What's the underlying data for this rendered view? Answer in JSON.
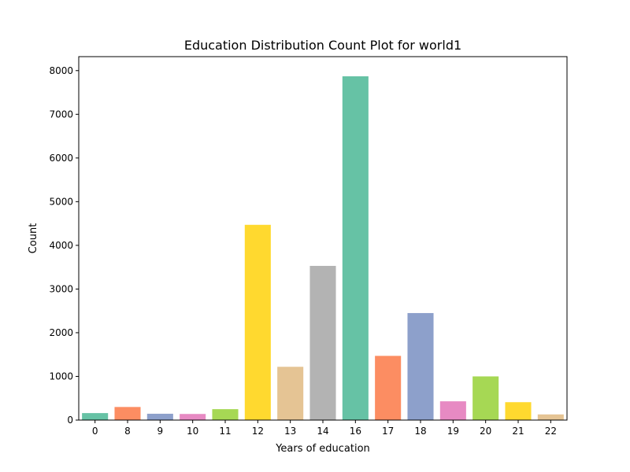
{
  "chart_data": {
    "type": "bar",
    "title": "Education Distribution Count Plot for world1",
    "xlabel": "Years of education",
    "ylabel": "Count",
    "categories": [
      "0",
      "8",
      "9",
      "10",
      "11",
      "12",
      "13",
      "14",
      "16",
      "17",
      "18",
      "19",
      "20",
      "21",
      "22"
    ],
    "values": [
      160,
      300,
      145,
      140,
      250,
      4470,
      1220,
      3530,
      7870,
      1470,
      2450,
      430,
      1000,
      410,
      130
    ],
    "ylim": [
      0,
      8320
    ],
    "yticks": [
      0,
      1000,
      2000,
      3000,
      4000,
      5000,
      6000,
      7000,
      8000
    ],
    "colors": [
      "#66c2a5",
      "#fc8d62",
      "#8da0cb",
      "#e78ac3",
      "#a6d854",
      "#ffd92f",
      "#e5c494",
      "#b3b3b3"
    ],
    "grid": false,
    "legend": "none"
  }
}
